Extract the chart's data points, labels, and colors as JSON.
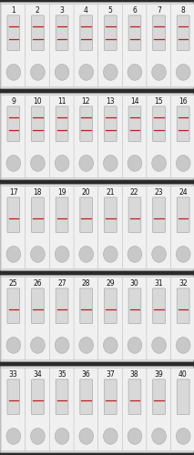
{
  "figsize": [
    2.13,
    5.0
  ],
  "dpi": 100,
  "bg_color": "#2a2a2a",
  "row_bg_color": "#dcdcdc",
  "strip_color": "#f0f0f0",
  "strip_border_color": "#bbbbbb",
  "window_color": "#e0e0e0",
  "window_border_color": "#aaaaaa",
  "window_inner_color": "#d8d8d8",
  "circle_color": "#c8c8c8",
  "circle_border_color": "#aaaaaa",
  "line_color_red": "#bb2020",
  "line_color_faint": "#cc8888",
  "num_rows": 5,
  "cols_per_row": 8,
  "total_biosensors": 40,
  "row_labels": [
    [
      1,
      2,
      3,
      4,
      5,
      6,
      7,
      8
    ],
    [
      9,
      10,
      11,
      12,
      13,
      14,
      15,
      16
    ],
    [
      17,
      18,
      19,
      20,
      21,
      22,
      23,
      24
    ],
    [
      25,
      26,
      27,
      28,
      29,
      30,
      31,
      32
    ],
    [
      33,
      34,
      35,
      36,
      37,
      38,
      39,
      40
    ]
  ],
  "two_lines": [
    1,
    2,
    3,
    4,
    5,
    6,
    7,
    8,
    9,
    10,
    11,
    12,
    13,
    14,
    15,
    16
  ],
  "one_line": [
    17,
    18,
    19,
    20,
    21,
    22,
    23,
    24,
    25,
    26,
    27,
    28,
    29,
    30,
    31,
    32,
    33,
    34,
    35,
    36,
    37,
    38,
    39
  ],
  "blank": [
    40
  ],
  "label_color": "#111111",
  "label_fontsize": 5.5
}
